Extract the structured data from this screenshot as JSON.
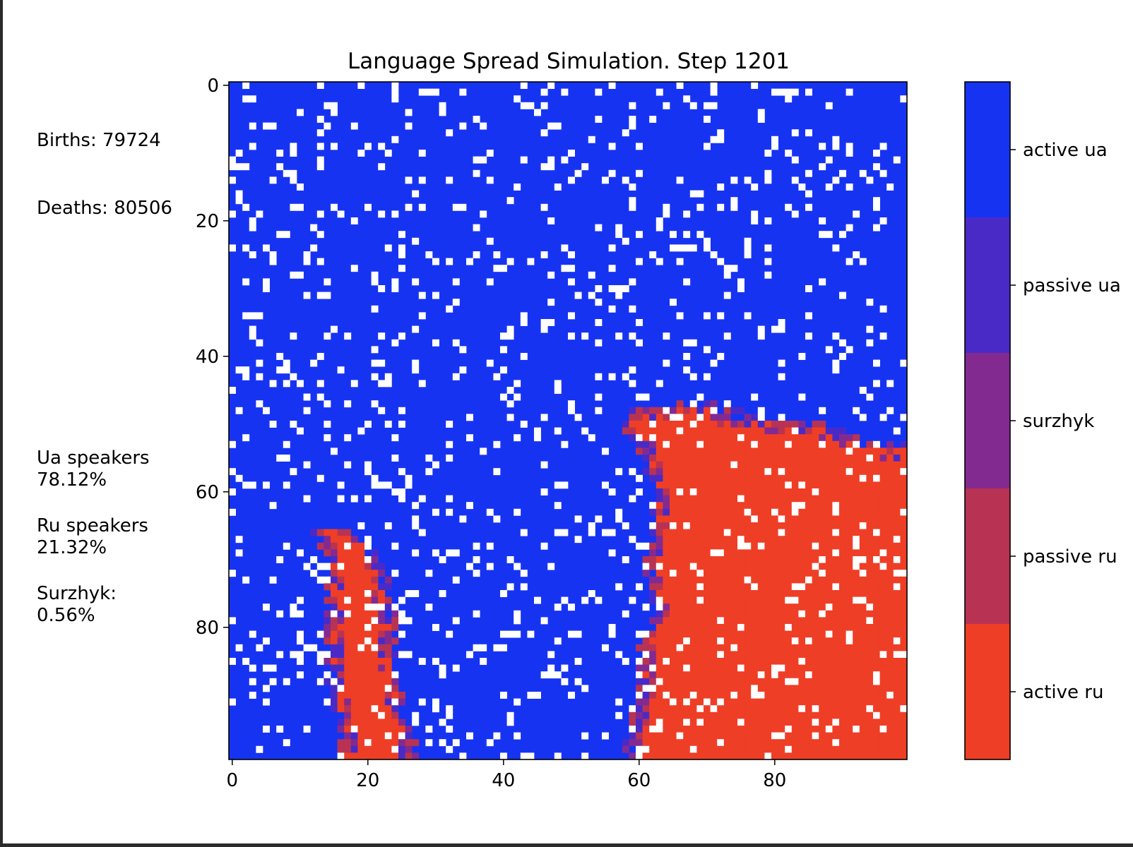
{
  "chart_data": {
    "type": "heatmap",
    "title": "Language Spread Simulation. Step 1201",
    "grid_size": [
      100,
      100
    ],
    "x_ticks": [
      0,
      20,
      40,
      60,
      80
    ],
    "y_ticks": [
      0,
      20,
      40,
      60,
      80
    ],
    "xlim": [
      -0.5,
      99.5
    ],
    "ylim": [
      99.5,
      -0.5
    ],
    "categories": [
      "active ua",
      "passive ua",
      "surzhyk",
      "passive ru",
      "active ru",
      "empty"
    ],
    "colors": {
      "active ua": "#1733f2",
      "passive ua": "#4a2ac7",
      "surzhyk": "#832a91",
      "passive ru": "#b83353",
      "active ru": "#ef3e26",
      "empty": "#ffffff"
    },
    "colorbar": {
      "labels": [
        "active ua",
        "passive ua",
        "surzhyk",
        "passive ru",
        "active ru"
      ],
      "placement": "right"
    },
    "regions": {
      "right_ru_boundary_x_by_row": [
        [
          46,
          71
        ],
        [
          48,
          60
        ],
        [
          50,
          58
        ],
        [
          53,
          61
        ],
        [
          56,
          62
        ],
        [
          60,
          63
        ],
        [
          64,
          63
        ],
        [
          70,
          62
        ],
        [
          78,
          63
        ],
        [
          84,
          61
        ],
        [
          90,
          61
        ],
        [
          94,
          60
        ],
        [
          99,
          59
        ]
      ],
      "right_ru_top_edge_by_col": [
        [
          60,
          48
        ],
        [
          65,
          48
        ],
        [
          70,
          47
        ],
        [
          72,
          49
        ],
        [
          80,
          50
        ],
        [
          88,
          51
        ],
        [
          92,
          53
        ],
        [
          96,
          54
        ],
        [
          99,
          54
        ]
      ],
      "left_ru_region": {
        "rows": [
          66,
          99
        ],
        "left_x_by_row": [
          [
            66,
            13
          ],
          [
            70,
            15
          ],
          [
            74,
            15
          ],
          [
            80,
            15
          ],
          [
            86,
            15
          ],
          [
            92,
            16
          ],
          [
            96,
            17
          ],
          [
            99,
            17
          ]
        ],
        "right_x_by_row": [
          [
            66,
            16
          ],
          [
            68,
            19
          ],
          [
            71,
            21
          ],
          [
            75,
            22
          ],
          [
            80,
            23
          ],
          [
            85,
            23
          ],
          [
            90,
            24
          ],
          [
            95,
            25
          ],
          [
            99,
            26
          ]
        ]
      }
    }
  },
  "stats": {
    "births": "Births: 79724",
    "deaths": "Deaths: 80506",
    "ua_label": "Ua speakers",
    "ua_value": "78.12%",
    "ru_label": "Ru speakers",
    "ru_value": "21.32%",
    "surzhyk_label": "Surzhyk:",
    "surzhyk_value": "0.56%"
  }
}
